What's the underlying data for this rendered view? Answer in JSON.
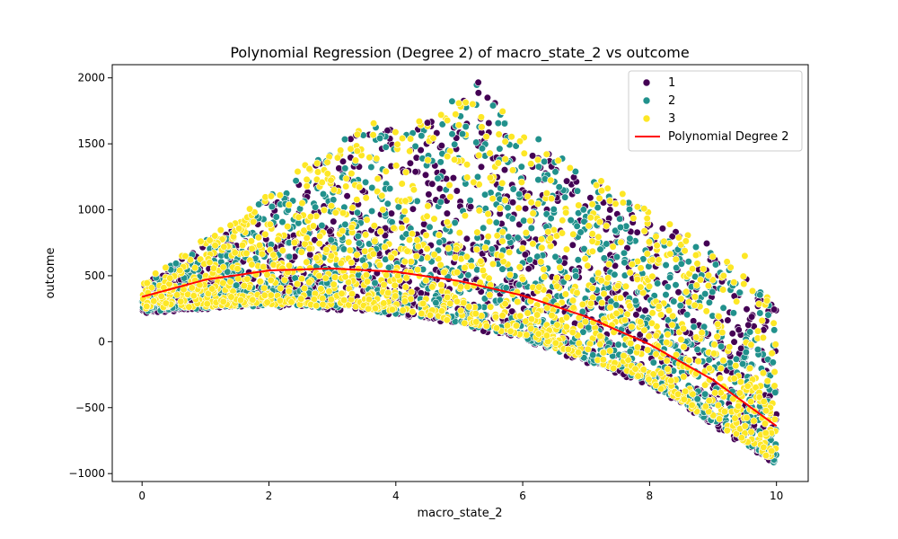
{
  "chart_data": {
    "type": "scatter",
    "title": "Polynomial Regression (Degree 2) of macro_state_2 vs outcome",
    "xlabel": "macro_state_2",
    "ylabel": "outcome",
    "xlim": [
      -0.47,
      10.5
    ],
    "ylim": [
      -1060,
      2100
    ],
    "xticks": [
      0,
      2,
      4,
      6,
      8,
      10
    ],
    "yticks": [
      -1000,
      -500,
      0,
      500,
      1000,
      1500,
      2000
    ],
    "grid": false,
    "legend_position": "top-right",
    "series": [
      {
        "name": "1",
        "color": "#440154"
      },
      {
        "name": "2",
        "color": "#21918c"
      },
      {
        "name": "3",
        "color": "#fde725"
      }
    ],
    "scatter_points_per_series": 1400,
    "scatter_description_points": [
      {
        "x": 0,
        "y_low": 230,
        "y_high": 420
      },
      {
        "x": 2,
        "y_low": 270,
        "y_high": 1090
      },
      {
        "x": 3.3,
        "y_low": 250,
        "y_high": 1580
      },
      {
        "x": 4.5,
        "y_low": 180,
        "y_high": 1660
      },
      {
        "x": 5.3,
        "y_low": 100,
        "y_high": 1970
      },
      {
        "x": 6,
        "y_low": 20,
        "y_high": 1540
      },
      {
        "x": 8,
        "y_low": -320,
        "y_high": 1000
      },
      {
        "x": 10,
        "y_low": -930,
        "y_high": 320
      }
    ],
    "fit_line": {
      "name": "Polynomial Degree 2",
      "color": "#ff0000",
      "x": [
        0,
        1,
        2,
        3,
        4,
        5,
        6,
        7,
        8,
        9,
        10
      ],
      "y": [
        340,
        470,
        540,
        555,
        530,
        460,
        350,
        190,
        -20,
        -290,
        -640
      ]
    }
  }
}
